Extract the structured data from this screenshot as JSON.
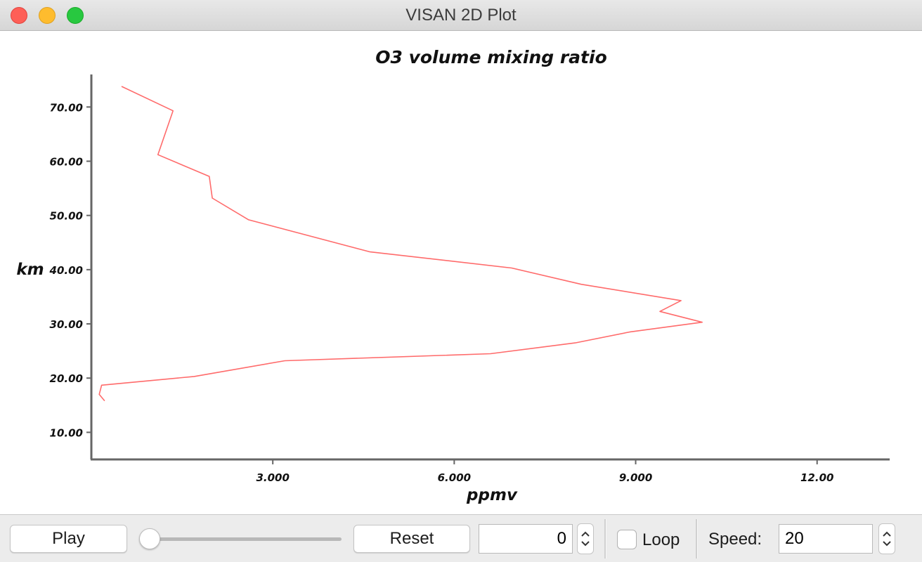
{
  "window": {
    "title": "VISAN 2D Plot"
  },
  "chart_data": {
    "type": "line",
    "title": "O3 volume mixing ratio",
    "xlabel": "ppmv",
    "ylabel": "km",
    "xlim": [
      0.0,
      13.2
    ],
    "ylim": [
      5.0,
      76.0
    ],
    "xticks": [
      3.0,
      6.0,
      9.0,
      12.0
    ],
    "xtick_labels": [
      "3.000",
      "6.000",
      "9.000",
      "12.00"
    ],
    "yticks": [
      10,
      20,
      30,
      40,
      50,
      60,
      70
    ],
    "ytick_labels": [
      "10.00",
      "20.00",
      "30.00",
      "40.00",
      "50.00",
      "60.00",
      "70.00"
    ],
    "grid": false,
    "series": [
      {
        "color": "#ff6b6b",
        "x": [
          0.22,
          0.13,
          0.17,
          1.7,
          3.2,
          6.6,
          8.0,
          8.9,
          10.1,
          9.4,
          9.75,
          8.1,
          6.95,
          4.6,
          2.6,
          2.0,
          1.95,
          1.1,
          1.35,
          0.5
        ],
        "y": [
          15.8,
          17.0,
          18.7,
          20.3,
          23.2,
          24.5,
          26.5,
          28.5,
          30.3,
          32.3,
          34.3,
          37.3,
          40.3,
          43.3,
          49.2,
          53.2,
          57.2,
          61.2,
          69.3,
          73.8
        ]
      }
    ]
  },
  "controls": {
    "play_label": "Play",
    "reset_label": "Reset",
    "frame_value": "0",
    "loop_label": "Loop",
    "speed_label": "Speed:",
    "speed_value": "20"
  }
}
